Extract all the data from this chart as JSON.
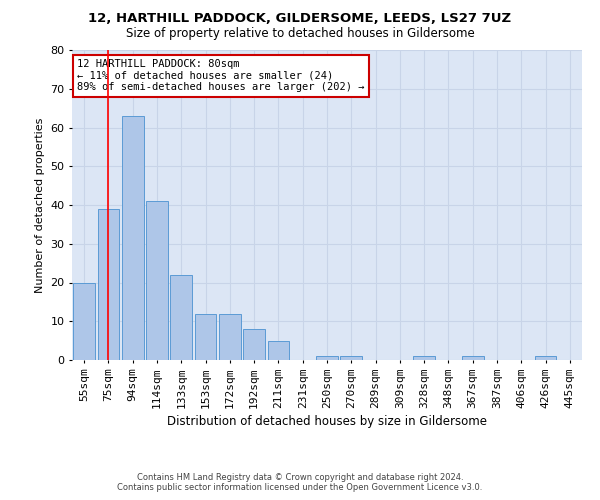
{
  "title1": "12, HARTHILL PADDOCK, GILDERSOME, LEEDS, LS27 7UZ",
  "title2": "Size of property relative to detached houses in Gildersome",
  "xlabel": "Distribution of detached houses by size in Gildersome",
  "ylabel": "Number of detached properties",
  "categories": [
    "55sqm",
    "75sqm",
    "94sqm",
    "114sqm",
    "133sqm",
    "153sqm",
    "172sqm",
    "192sqm",
    "211sqm",
    "231sqm",
    "250sqm",
    "270sqm",
    "289sqm",
    "309sqm",
    "328sqm",
    "348sqm",
    "367sqm",
    "387sqm",
    "406sqm",
    "426sqm",
    "445sqm"
  ],
  "values": [
    20,
    39,
    63,
    41,
    22,
    12,
    12,
    8,
    5,
    0,
    1,
    1,
    0,
    0,
    1,
    0,
    1,
    0,
    0,
    1,
    0
  ],
  "bar_color": "#aec6e8",
  "bar_edge_color": "#5b9bd5",
  "grid_color": "#c8d4e8",
  "background_color": "#dce6f5",
  "red_line_x": 1.0,
  "annotation_text": "12 HARTHILL PADDOCK: 80sqm\n← 11% of detached houses are smaller (24)\n89% of semi-detached houses are larger (202) →",
  "annotation_box_color": "#ffffff",
  "annotation_box_edge": "#cc0000",
  "ylim": [
    0,
    80
  ],
  "yticks": [
    0,
    10,
    20,
    30,
    40,
    50,
    60,
    70,
    80
  ],
  "footer1": "Contains HM Land Registry data © Crown copyright and database right 2024.",
  "footer2": "Contains public sector information licensed under the Open Government Licence v3.0."
}
